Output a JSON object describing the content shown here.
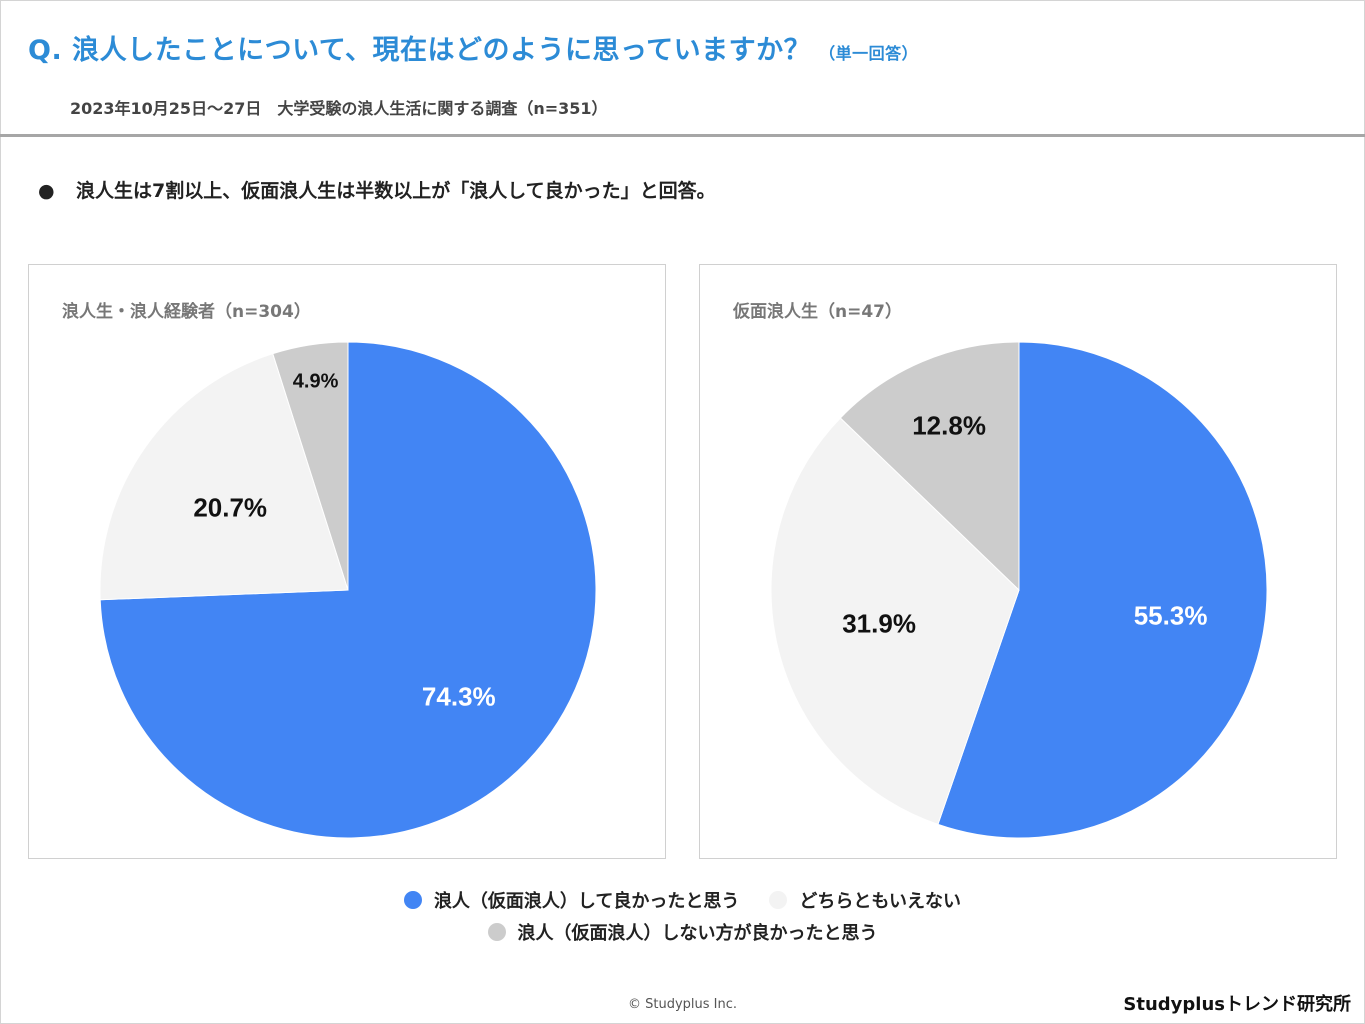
{
  "header": {
    "question": "Q. 浪人したことについて、現在はどのように思っていますか？",
    "question_note": "（単一回答）",
    "survey_info": "2023年10月25日〜27日　大学受験の浪人生活に関する調査（n=351）"
  },
  "summary": {
    "bullet": "●",
    "text": "浪人生は7割以上、仮面浪人生は半数以上が「浪人して良かった」と回答。"
  },
  "colors": {
    "good": "#4285f4",
    "neutral": "#f3f3f3",
    "bad": "#cccccc"
  },
  "chart_data": [
    {
      "type": "pie",
      "title": "浪人生・浪人経験者（n=304）",
      "categories": [
        "浪人（仮面浪人）して良かったと思う",
        "どちらともいえない",
        "浪人（仮面浪人）しない方が良かったと思う"
      ],
      "values": [
        74.3,
        20.7,
        4.9
      ],
      "labels": [
        "74.3%",
        "20.7%",
        "4.9%"
      ],
      "legend": "bottom"
    },
    {
      "type": "pie",
      "title": "仮面浪人生（n=47）",
      "categories": [
        "浪人（仮面浪人）して良かったと思う",
        "どちらともいえない",
        "浪人（仮面浪人）しない方が良かったと思う"
      ],
      "values": [
        55.3,
        31.9,
        12.8
      ],
      "labels": [
        "55.3%",
        "31.9%",
        "12.8%"
      ],
      "legend": "bottom"
    }
  ],
  "legend": {
    "items": [
      "浪人（仮面浪人）して良かったと思う",
      "どちらともいえない",
      "浪人（仮面浪人）しない方が良かったと思う"
    ]
  },
  "footer": {
    "copyright": "© Studyplus Inc.",
    "brand": "Studyplusトレンド研究所"
  }
}
